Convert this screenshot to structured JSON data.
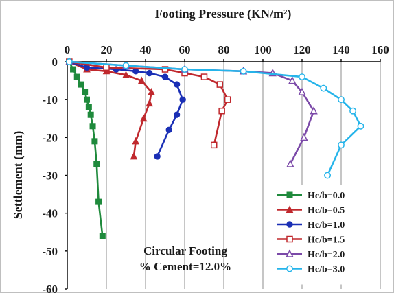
{
  "chart_data": {
    "type": "line",
    "xlabel": "Footing Pressure (KN/m²)",
    "ylabel": "Settlement (mm)",
    "xlim": [
      0,
      160
    ],
    "ylim": [
      -60,
      0
    ],
    "x_ticks": [
      0,
      20,
      40,
      60,
      80,
      100,
      120,
      140,
      160
    ],
    "y_ticks": [
      0,
      -10,
      -20,
      -30,
      -40,
      -50,
      -60
    ],
    "x_axis_position": "top",
    "grid": "vertical",
    "legend_position": "bottom-right",
    "annotation": [
      "Circular Footing",
      "% Cement=12.0%"
    ],
    "series": [
      {
        "name": "Hc/b=0.0",
        "color": "#1f8a3c",
        "marker": "square-filled",
        "x": [
          1,
          3,
          5,
          7,
          9,
          10,
          11,
          12,
          13,
          14,
          15,
          16,
          18
        ],
        "y": [
          0,
          -2,
          -4,
          -6,
          -8,
          -10,
          -12,
          -14,
          -17,
          -21,
          -27,
          -37,
          -46
        ]
      },
      {
        "name": "Hc/b=0.5",
        "color": "#c0282d",
        "marker": "triangle-filled",
        "x": [
          1,
          10,
          20,
          30,
          38,
          43,
          42,
          39,
          35,
          34
        ],
        "y": [
          0,
          -2,
          -2.5,
          -3.5,
          -5,
          -8,
          -11,
          -15,
          -21,
          -25
        ]
      },
      {
        "name": "Hc/b=1.0",
        "color": "#1a2fb5",
        "marker": "circle-filled",
        "x": [
          1,
          10,
          25,
          35,
          42,
          50,
          56,
          59,
          56,
          52,
          46
        ],
        "y": [
          0,
          -1.5,
          -2,
          -2.5,
          -3,
          -4,
          -6,
          -10,
          -14,
          -18,
          -25
        ]
      },
      {
        "name": "Hc/b=1.5",
        "color": "#c0282d",
        "marker": "square-open",
        "x": [
          1,
          20,
          50,
          60,
          70,
          78,
          82,
          79,
          75
        ],
        "y": [
          0,
          -1.5,
          -2,
          -3,
          -4,
          -6,
          -10,
          -13,
          -22
        ]
      },
      {
        "name": "Hc/b=2.0",
        "color": "#7b49a8",
        "marker": "triangle-open",
        "x": [
          1,
          30,
          60,
          90,
          105,
          115,
          120,
          126,
          121,
          114
        ],
        "y": [
          0,
          -1,
          -2,
          -2.5,
          -3,
          -5,
          -8,
          -13,
          -20,
          -27
        ]
      },
      {
        "name": "Hc/b=3.0",
        "color": "#25b4ea",
        "marker": "circle-open",
        "x": [
          1,
          30,
          60,
          90,
          120,
          131,
          140,
          146,
          150,
          140,
          133
        ],
        "y": [
          0,
          -1,
          -2,
          -2.5,
          -4,
          -7,
          -10,
          -13,
          -17,
          -22,
          -30
        ]
      }
    ]
  }
}
